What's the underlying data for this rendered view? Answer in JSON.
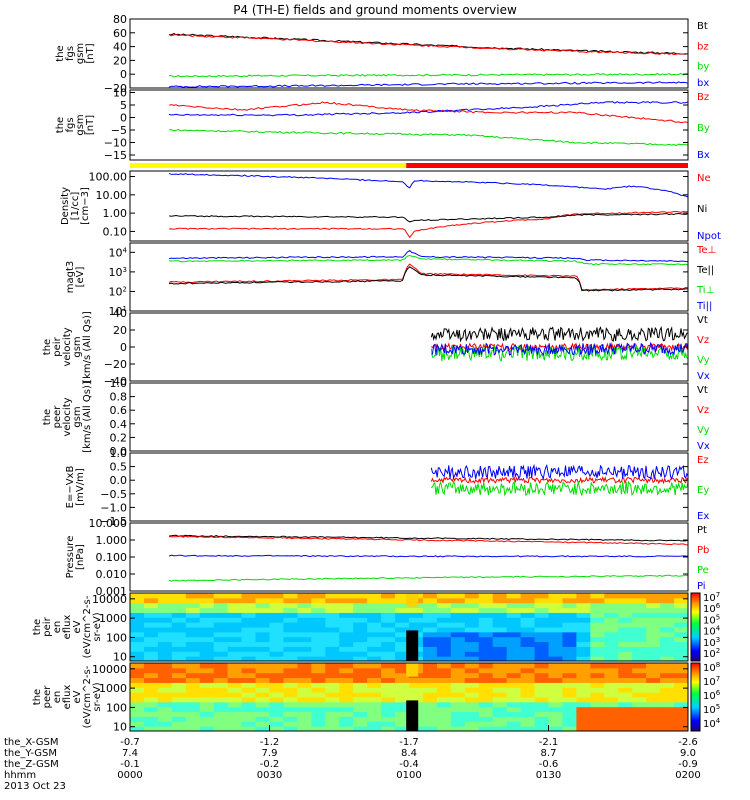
{
  "title": "P4 (TH-E) fields and ground moments overview",
  "colors": {
    "black": "#000000",
    "red": "#ff0000",
    "green": "#00dd00",
    "blue": "#0000ff",
    "yellow": "#ffff00"
  },
  "footer": {
    "row_labels": [
      "the_X-GSM",
      "the_Y-GSM",
      "the_Z-GSM",
      "hhmm",
      "2013 Oct 23"
    ],
    "columns": [
      {
        "x": "-0.7",
        "y": "7.4",
        "z": "-0.1",
        "t": "0000"
      },
      {
        "x": "-1.2",
        "y": "7.9",
        "z": "-0.2",
        "t": "0030"
      },
      {
        "x": "-1.7",
        "y": "8.4",
        "z": "-0.4",
        "t": "0100"
      },
      {
        "x": "-2.1",
        "y": "8.7",
        "z": "-0.6",
        "t": "0130"
      },
      {
        "x": "-2.6",
        "y": "9.0",
        "z": "-0.9",
        "t": "0200"
      }
    ]
  },
  "colorbar_ticks": [
    {
      "panel": 9,
      "ticks": [
        "10^7",
        "10^6",
        "10^5",
        "10^4",
        "10^3",
        "10^2"
      ]
    },
    {
      "panel": 10,
      "ticks": [
        "10^8",
        "10^7",
        "10^6",
        "10^5",
        "10^4"
      ]
    }
  ],
  "chart_data": [
    {
      "type": "line",
      "ylabel": [
        "the",
        "fgs",
        "gsm",
        "[nT]"
      ],
      "ylim": [
        -20,
        80
      ],
      "yticks": [
        "80",
        "60",
        "40",
        "20",
        "0",
        "−20"
      ],
      "yticks_values": [
        80,
        60,
        40,
        20,
        0,
        -20
      ],
      "series": [
        {
          "name": "Bt",
          "color": "#000000",
          "x": [
            0.07,
            0.2,
            0.4,
            0.6,
            0.8,
            1.0
          ],
          "values": [
            58,
            54,
            47,
            40,
            34,
            30
          ]
        },
        {
          "name": "bz",
          "color": "#ff0000",
          "x": [
            0.07,
            0.2,
            0.4,
            0.6,
            0.8,
            1.0
          ],
          "values": [
            57,
            53,
            46,
            39,
            33,
            29
          ]
        },
        {
          "name": "by",
          "color": "#00dd00",
          "x": [
            0.07,
            0.3,
            0.6,
            1.0
          ],
          "values": [
            -3,
            -2,
            -1,
            0
          ]
        },
        {
          "name": "bx",
          "color": "#0000ff",
          "x": [
            0.07,
            0.3,
            0.6,
            1.0
          ],
          "values": [
            -18,
            -17,
            -14,
            -12
          ]
        }
      ]
    },
    {
      "type": "line",
      "ylabel": [
        "the",
        "fgs",
        "gsm",
        "[nT]"
      ],
      "ylim": [
        -17,
        11
      ],
      "yticks": [
        "10",
        "5",
        "0",
        "−5",
        "−10",
        "−15"
      ],
      "yticks_values": [
        10,
        5,
        0,
        -5,
        -10,
        -15
      ],
      "series": [
        {
          "name": "Bz",
          "color": "#ff0000",
          "x": [
            0.07,
            0.2,
            0.35,
            0.5,
            0.65,
            0.8,
            1.0
          ],
          "values": [
            5,
            3,
            6,
            3,
            2,
            2,
            -2
          ]
        },
        {
          "name": "By",
          "color": "#00dd00",
          "x": [
            0.07,
            0.3,
            0.6,
            0.8,
            1.0
          ],
          "values": [
            -5,
            -6,
            -7,
            -10,
            -11
          ]
        },
        {
          "name": "Bx",
          "color": "#0000ff",
          "x": [
            0.07,
            0.3,
            0.5,
            0.7,
            0.85,
            1.0
          ],
          "values": [
            1,
            1,
            2,
            4,
            6,
            6
          ]
        }
      ]
    },
    {
      "type": "log-line",
      "ylabel": [
        "Density",
        "[1/cc]",
        "[cm−3]"
      ],
      "ylim": [
        0.03,
        200
      ],
      "yticks": [
        "100.00",
        "10.00",
        "1.00",
        "0.10"
      ],
      "yticks_values": [
        100,
        10,
        1,
        0.1
      ],
      "series": [
        {
          "name": "Ne",
          "color": "#ff0000",
          "x": [
            0.07,
            0.49,
            0.5,
            0.51,
            0.75,
            0.8,
            1.0
          ],
          "values": [
            0.14,
            0.14,
            0.04,
            0.1,
            0.5,
            0.9,
            1.2
          ]
        },
        {
          "name": "Ni",
          "color": "#000000",
          "x": [
            0.07,
            0.49,
            0.5,
            0.51,
            0.75,
            0.8,
            1.0
          ],
          "values": [
            0.7,
            0.6,
            0.3,
            0.4,
            0.6,
            0.8,
            0.9
          ]
        },
        {
          "name": "Npot",
          "color": "#0000ff",
          "x": [
            0.07,
            0.3,
            0.49,
            0.5,
            0.51,
            0.7,
            0.85,
            0.9,
            1.0
          ],
          "values": [
            140,
            90,
            50,
            20,
            60,
            40,
            20,
            30,
            7
          ]
        }
      ]
    },
    {
      "type": "log-line",
      "ylabel": [
        "magt3",
        "[eV]"
      ],
      "ylim": [
        10,
        30000
      ],
      "yticks": [
        "10^4",
        "10^3",
        "10^2",
        "10^1"
      ],
      "yticks_values": [
        10000,
        1000,
        100,
        10
      ],
      "series": [
        {
          "name": "Te⊥",
          "color": "#ff0000",
          "x": [
            0.07,
            0.49,
            0.5,
            0.52,
            0.8,
            0.81,
            1.0
          ],
          "values": [
            300,
            400,
            2500,
            800,
            600,
            120,
            150
          ]
        },
        {
          "name": "Te||",
          "color": "#000000",
          "x": [
            0.07,
            0.49,
            0.5,
            0.52,
            0.8,
            0.81,
            1.0
          ],
          "values": [
            250,
            350,
            2000,
            700,
            500,
            110,
            130
          ]
        },
        {
          "name": "Ti⊥",
          "color": "#00dd00",
          "x": [
            0.07,
            0.49,
            0.5,
            0.52,
            0.8,
            0.82,
            1.0
          ],
          "values": [
            3500,
            4000,
            7000,
            4500,
            3500,
            2500,
            2500
          ]
        },
        {
          "name": "Ti||",
          "color": "#0000ff",
          "x": [
            0.07,
            0.49,
            0.5,
            0.52,
            0.8,
            0.82,
            1.0
          ],
          "values": [
            5000,
            6000,
            12000,
            6000,
            5000,
            4000,
            3500
          ]
        }
      ]
    },
    {
      "type": "line",
      "ylabel": [
        "the",
        "peir",
        "velocity",
        "gsm",
        "[km/s (All Qs)]"
      ],
      "ylim": [
        -40,
        40
      ],
      "yticks": [
        "40",
        "20",
        "0",
        "−20",
        "−40"
      ],
      "yticks_values": [
        40,
        20,
        0,
        -20,
        -40
      ],
      "series": [
        {
          "name": "Vt",
          "color": "#000000",
          "x": [
            0.54,
            1.0
          ],
          "values": [
            15,
            15
          ],
          "noise": 8
        },
        {
          "name": "Vz",
          "color": "#ff0000",
          "x": [
            0.54,
            1.0
          ],
          "values": [
            0,
            0
          ],
          "noise": 4
        },
        {
          "name": "Vy",
          "color": "#00dd00",
          "x": [
            0.54,
            1.0
          ],
          "values": [
            -8,
            -6
          ],
          "noise": 9
        },
        {
          "name": "Vx",
          "color": "#0000ff",
          "x": [
            0.54,
            1.0
          ],
          "values": [
            -3,
            -2
          ],
          "noise": 7
        }
      ]
    },
    {
      "type": "line",
      "ylabel": [
        "the",
        "peer",
        "velocity",
        "gsm",
        "[km/s (All Qs)]"
      ],
      "ylim": [
        0,
        1
      ],
      "yticks": [
        "1.0",
        "0.8",
        "0.6",
        "0.4",
        "0.2",
        "0.0"
      ],
      "yticks_values": [
        1,
        0.8,
        0.6,
        0.4,
        0.2,
        0
      ],
      "series": [
        {
          "name": "Vt",
          "color": "#000000",
          "x": [],
          "values": []
        },
        {
          "name": "Vz",
          "color": "#ff0000",
          "x": [],
          "values": []
        },
        {
          "name": "Vy",
          "color": "#00dd00",
          "x": [],
          "values": []
        },
        {
          "name": "Vx",
          "color": "#0000ff",
          "x": [],
          "values": []
        }
      ]
    },
    {
      "type": "line",
      "ylabel": [
        "E=−VxB",
        "[mV/m]"
      ],
      "ylim": [
        -1.5,
        1.0
      ],
      "yticks": [
        "1.0",
        "0.5",
        "0.0",
        "−0.5",
        "−1.0",
        "−1.5"
      ],
      "yticks_values": [
        1,
        0.5,
        0,
        -0.5,
        -1,
        -1.5
      ],
      "series": [
        {
          "name": "Ez",
          "color": "#ff0000",
          "x": [
            0.54,
            1.0
          ],
          "values": [
            0,
            0
          ],
          "noise": 0.1
        },
        {
          "name": "Ey",
          "color": "#00dd00",
          "x": [
            0.54,
            1.0
          ],
          "values": [
            -0.3,
            -0.3
          ],
          "noise": 0.25
        },
        {
          "name": "Ex",
          "color": "#0000ff",
          "x": [
            0.54,
            1.0
          ],
          "values": [
            0.3,
            0.3
          ],
          "noise": 0.25
        }
      ]
    },
    {
      "type": "log-line",
      "ylabel": [
        "Pressure",
        "[nPa]"
      ],
      "ylim": [
        0.001,
        10
      ],
      "yticks": [
        "10.000",
        "1.000",
        "0.100",
        "0.010",
        "0.001"
      ],
      "yticks_values": [
        10,
        1,
        0.1,
        0.01,
        0.001
      ],
      "series": [
        {
          "name": "Pt",
          "color": "#000000",
          "x": [
            0.07,
            0.5,
            1.0
          ],
          "values": [
            1.8,
            1.3,
            0.9
          ]
        },
        {
          "name": "Pb",
          "color": "#ff0000",
          "x": [
            0.07,
            0.5,
            1.0
          ],
          "values": [
            1.6,
            1.0,
            0.55
          ]
        },
        {
          "name": "Pe",
          "color": "#00dd00",
          "x": [
            0.07,
            0.5,
            1.0
          ],
          "values": [
            0.004,
            0.006,
            0.008
          ]
        },
        {
          "name": "Pi",
          "color": "#0000ff",
          "x": [
            0.07,
            0.5,
            1.0
          ],
          "values": [
            0.12,
            0.11,
            0.11
          ]
        }
      ]
    },
    {
      "type": "heatmap",
      "ylabel": [
        "the",
        "peir",
        "en",
        "eflux",
        "eV",
        "(eV/cm^2-s-",
        "sr-eV)"
      ],
      "yticks": [
        "10000",
        "1000",
        "100",
        "10"
      ],
      "yticks_values": [
        10000,
        1000,
        100,
        10
      ],
      "ylim": [
        6,
        20000
      ]
    },
    {
      "type": "heatmap",
      "ylabel": [
        "the",
        "peer",
        "en",
        "eflux",
        "eV",
        "(eV/cm^2-s-",
        "sr-eV)"
      ],
      "yticks": [
        "10000",
        "1000",
        "100",
        "10"
      ],
      "yticks_values": [
        10000,
        1000,
        100,
        10
      ],
      "ylim": [
        6,
        20000
      ]
    }
  ]
}
